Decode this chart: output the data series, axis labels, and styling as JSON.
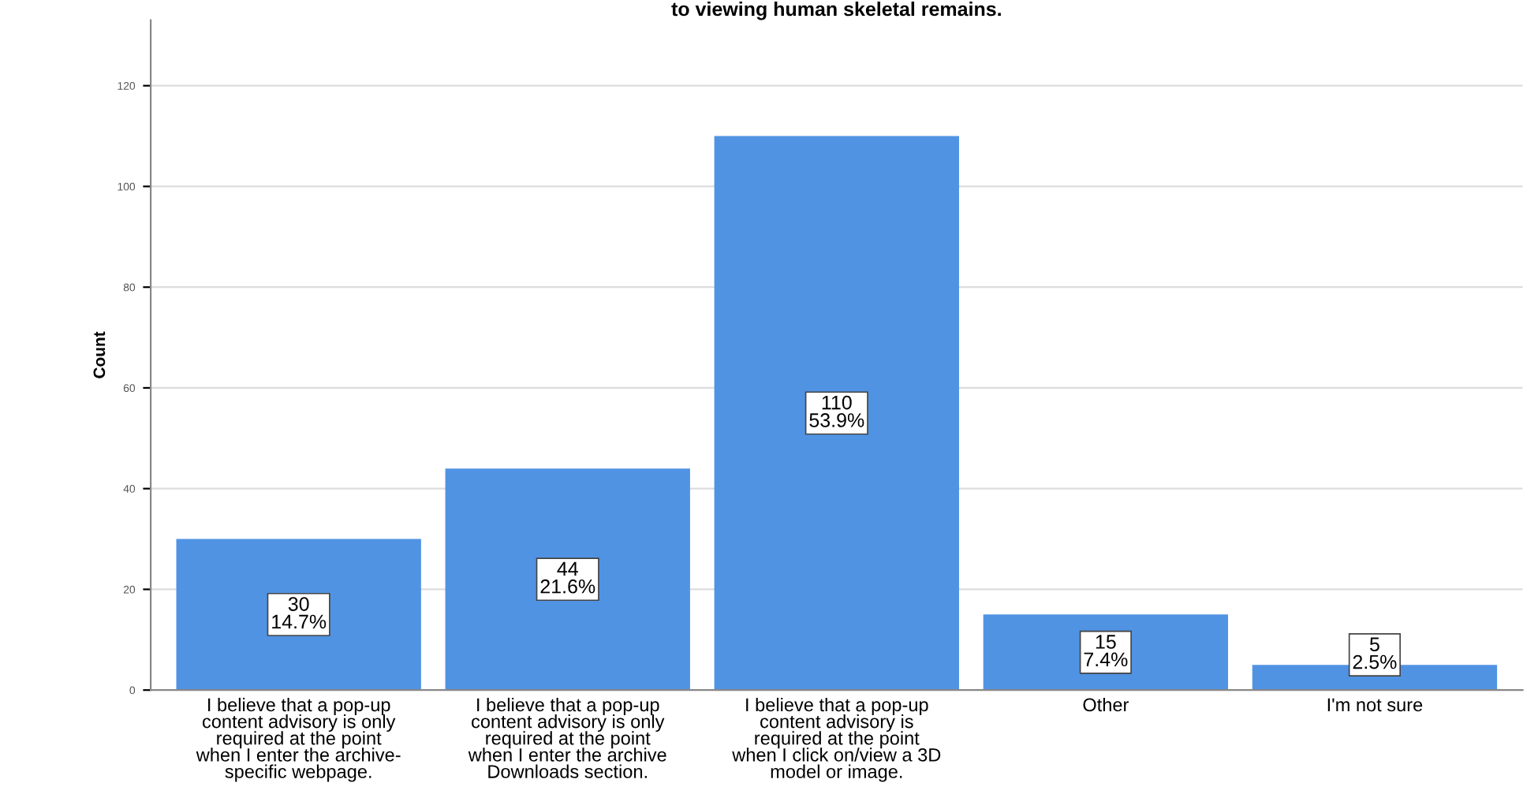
{
  "chart_data": {
    "type": "bar",
    "title": "to viewing human skeletal remains.",
    "ylabel": "Count",
    "categories": [
      "I believe that a pop-up\ncontent advisory is only\nrequired at the point\nwhen I enter the archive-\nspecific webpage.",
      "I believe that a pop-up\ncontent advisory is only\nrequired at the point\nwhen I enter the archive\nDownloads section.",
      "I believe that a pop-up\ncontent advisory is\nrequired at the point\nwhen I click on/view a 3D\nmodel or image.",
      "Other",
      "I'm not sure"
    ],
    "values": [
      30,
      44,
      110,
      15,
      5
    ],
    "value_labels": [
      "30\n14.7%",
      "44\n21.6%",
      "110\n53.9%",
      "15\n7.4%",
      "5\n2.5%"
    ],
    "color": "#5193e3",
    "ylim": [
      0,
      133
    ],
    "yticks": [
      0,
      20,
      40,
      60,
      80,
      100,
      120
    ],
    "grid": "y"
  }
}
